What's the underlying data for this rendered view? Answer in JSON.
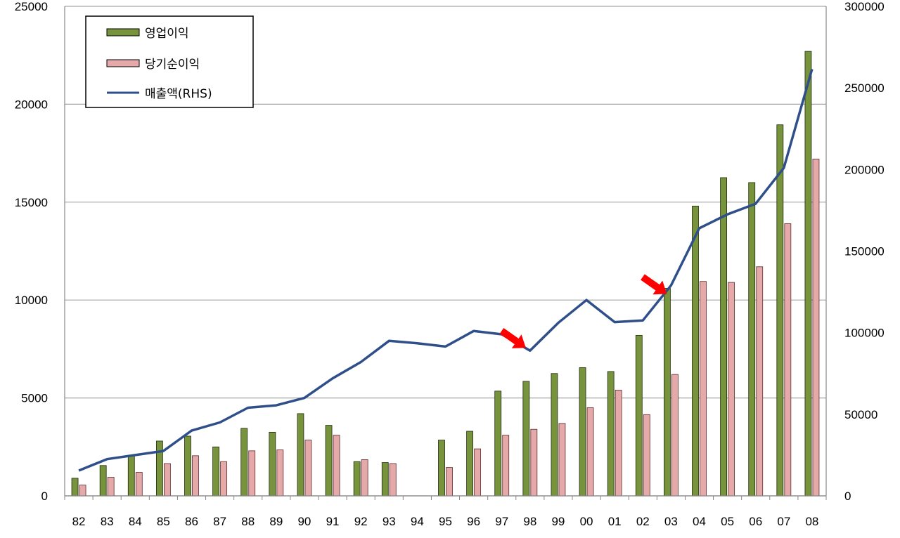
{
  "chart_data": {
    "type": "bar",
    "categories": [
      "82",
      "83",
      "84",
      "85",
      "86",
      "87",
      "88",
      "89",
      "90",
      "91",
      "92",
      "93",
      "94",
      "95",
      "96",
      "97",
      "98",
      "99",
      "00",
      "01",
      "02",
      "03",
      "04",
      "05",
      "06",
      "07",
      "08"
    ],
    "series": [
      {
        "name": "영업이익",
        "type": "bar",
        "axis": "left",
        "color": "#77933c",
        "values": [
          900,
          1550,
          2050,
          2800,
          3050,
          2500,
          3450,
          3250,
          4200,
          3600,
          1750,
          1700,
          null,
          2850,
          3300,
          5350,
          5850,
          6250,
          6550,
          6350,
          8200,
          10600,
          14800,
          16250,
          16000,
          18950,
          22700
        ]
      },
      {
        "name": "당기순이익",
        "type": "bar",
        "axis": "left",
        "color": "#e6a9a9",
        "values": [
          550,
          950,
          1200,
          1650,
          2050,
          1750,
          2300,
          2350,
          2850,
          3100,
          1850,
          1650,
          null,
          1450,
          2400,
          3100,
          3400,
          3700,
          4500,
          5400,
          4150,
          6200,
          10950,
          10900,
          11700,
          13900,
          17200
        ]
      },
      {
        "name": "매출액(RHS)",
        "type": "line",
        "axis": "right",
        "color": "#2f4f8a",
        "values": [
          15500,
          22500,
          25000,
          27500,
          40000,
          45000,
          54000,
          55500,
          60000,
          72000,
          82000,
          95000,
          93500,
          91500,
          101000,
          99000,
          89000,
          106000,
          120000,
          106500,
          107500,
          129000,
          164000,
          172500,
          179000,
          201000,
          261500
        ]
      }
    ],
    "y_left": {
      "min": 0,
      "max": 25000,
      "ticks": [
        "0",
        "5000",
        "10000",
        "15000",
        "20000",
        "25000"
      ]
    },
    "y_right": {
      "min": 0,
      "max": 300000,
      "ticks": [
        "0",
        "50000",
        "100000",
        "150000",
        "200000",
        "250000",
        "300000"
      ]
    },
    "grid": true,
    "legend_position": "top-left",
    "annotations": [
      {
        "type": "arrow",
        "color": "#ff0000",
        "category": "98",
        "target_right_value": 89000
      },
      {
        "type": "arrow",
        "color": "#ff0000",
        "category": "03",
        "target_right_value": 122000
      }
    ]
  }
}
